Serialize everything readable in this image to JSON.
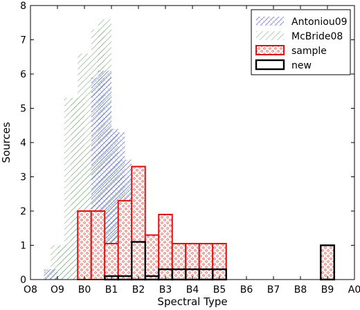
{
  "chart_data": {
    "type": "bar",
    "title": "",
    "xlabel": "Spectral Type",
    "ylabel": "Sources",
    "xlim": [
      0,
      12
    ],
    "ylim": [
      0,
      8
    ],
    "x_ticks": [
      0,
      1,
      2,
      3,
      4,
      5,
      6,
      7,
      8,
      9,
      10,
      11,
      12
    ],
    "x_tick_labels": [
      "O8",
      "O9",
      "B0",
      "B1",
      "B2",
      "B3",
      "B4",
      "B5",
      "B6",
      "B7",
      "B8",
      "B9",
      "A0"
    ],
    "y_ticks": [
      0,
      1,
      2,
      3,
      4,
      5,
      6,
      7,
      8
    ],
    "bar_width": 0.5,
    "legend_position": "top-right",
    "colors": {
      "antoniou": "#7b7fd6",
      "mcbride": "#5a9a5a",
      "sample": "#dd1111",
      "new": "#000000"
    },
    "series": [
      {
        "name": "McBride08",
        "style": "hatch-diagonal-green",
        "x": [
          0.75,
          1.0,
          1.25,
          1.5,
          1.75,
          2.0,
          2.25,
          2.5,
          2.75,
          3.0,
          3.25,
          3.5
        ],
        "values": [
          0.3,
          1.0,
          1.0,
          5.3,
          5.3,
          6.6,
          3.9,
          7.3,
          7.6,
          4.4,
          3.5,
          3.0
        ]
      },
      {
        "name": "Antoniou09",
        "style": "hatch-cross-blue",
        "x": [
          0.75,
          2.5,
          2.75,
          3.0,
          3.25,
          3.5
        ],
        "values": [
          0.3,
          5.9,
          6.1,
          4.4,
          4.3,
          3.5
        ]
      },
      {
        "name": "sample",
        "style": "dots-red-outline",
        "x": [
          2.0,
          2.5,
          3.0,
          3.5,
          4.0,
          4.5,
          5.0,
          5.5,
          6.0,
          6.5,
          7.0,
          11.0
        ],
        "values": [
          2.0,
          2.0,
          1.05,
          2.3,
          3.3,
          1.3,
          1.9,
          1.05,
          1.05,
          1.05,
          1.05,
          1.0
        ]
      },
      {
        "name": "new",
        "style": "black-outline",
        "x": [
          3.0,
          3.5,
          4.0,
          4.5,
          5.0,
          5.5,
          6.0,
          6.5,
          7.0,
          11.0
        ],
        "values": [
          0.1,
          0.1,
          1.1,
          0.1,
          0.3,
          0.3,
          0.3,
          0.3,
          0.3,
          1.0
        ]
      }
    ]
  }
}
